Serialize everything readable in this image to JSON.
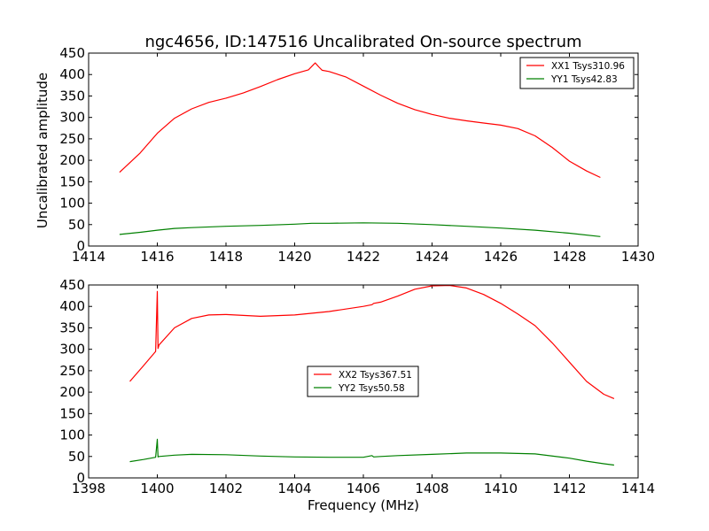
{
  "chart_data": [
    {
      "type": "line",
      "title": "ngc4656, ID:147516 Uncalibrated On-source spectrum",
      "xlabel": "",
      "ylabel": "Uncalibrated amplitude",
      "xlim": [
        1414,
        1430
      ],
      "ylim": [
        0,
        450
      ],
      "xticks": [
        "1414",
        "1416",
        "1418",
        "1420",
        "1422",
        "1424",
        "1426",
        "1428",
        "1430"
      ],
      "yticks": [
        "0",
        "50",
        "100",
        "150",
        "200",
        "250",
        "300",
        "350",
        "400",
        "450"
      ],
      "legend_position": "top-right",
      "series": [
        {
          "name": "XX1 Tsys310.96",
          "color": "#ff0000",
          "x": [
            1414.9,
            1415.5,
            1416.0,
            1416.5,
            1417.0,
            1417.5,
            1418.0,
            1418.5,
            1419.0,
            1419.5,
            1420.0,
            1420.4,
            1420.6,
            1420.7,
            1420.8,
            1421.0,
            1421.5,
            1422.0,
            1422.5,
            1423.0,
            1423.5,
            1424.0,
            1424.5,
            1425.0,
            1425.5,
            1426.0,
            1426.5,
            1427.0,
            1427.5,
            1428.0,
            1428.5,
            1428.9
          ],
          "y": [
            172,
            217,
            263,
            298,
            320,
            335,
            345,
            357,
            372,
            388,
            402,
            411,
            427,
            418,
            410,
            407,
            394,
            373,
            352,
            333,
            318,
            307,
            298,
            292,
            287,
            282,
            274,
            257,
            230,
            198,
            175,
            160
          ]
        },
        {
          "name": "YY1 Tsys42.83",
          "color": "#008000",
          "x": [
            1414.9,
            1415.5,
            1416.0,
            1416.5,
            1417.0,
            1418.0,
            1419.0,
            1420.0,
            1420.5,
            1421.0,
            1422.0,
            1423.0,
            1424.0,
            1425.0,
            1426.0,
            1427.0,
            1428.0,
            1428.9
          ],
          "y": [
            27,
            32,
            37,
            41,
            43,
            46,
            48,
            51,
            53,
            53,
            54,
            53,
            50,
            46,
            42,
            37,
            30,
            22
          ]
        }
      ]
    },
    {
      "type": "line",
      "title": "",
      "xlabel": "Frequency (MHz)",
      "ylabel": "",
      "xlim": [
        1398,
        1414
      ],
      "ylim": [
        0,
        450
      ],
      "xticks": [
        "1398",
        "1400",
        "1402",
        "1404",
        "1406",
        "1408",
        "1410",
        "1412",
        "1414"
      ],
      "yticks": [
        "0",
        "50",
        "100",
        "150",
        "200",
        "250",
        "300",
        "350",
        "400",
        "450"
      ],
      "legend_position": "center",
      "series": [
        {
          "name": "XX2 Tsys367.51",
          "color": "#ff0000",
          "x": [
            1399.2,
            1399.6,
            1399.95,
            1400.0,
            1400.02,
            1400.05,
            1400.5,
            1401.0,
            1401.5,
            1402.0,
            1403.0,
            1404.0,
            1405.0,
            1406.0,
            1406.25,
            1406.3,
            1406.5,
            1407.0,
            1407.5,
            1408.0,
            1408.5,
            1409.0,
            1409.5,
            1410.0,
            1410.5,
            1411.0,
            1411.5,
            1412.0,
            1412.5,
            1413.0,
            1413.3
          ],
          "y": [
            225,
            262,
            295,
            435,
            302,
            310,
            350,
            372,
            380,
            381,
            377,
            380,
            388,
            400,
            404,
            407,
            410,
            424,
            440,
            448,
            449,
            443,
            428,
            407,
            382,
            355,
            315,
            270,
            225,
            195,
            185
          ]
        },
        {
          "name": "YY2 Tsys50.58",
          "color": "#008000",
          "x": [
            1399.2,
            1399.6,
            1399.95,
            1400.0,
            1400.02,
            1400.05,
            1400.5,
            1401.0,
            1402.0,
            1403.0,
            1404.0,
            1405.0,
            1406.0,
            1406.25,
            1406.3,
            1406.5,
            1407.0,
            1408.0,
            1409.0,
            1410.0,
            1410.5,
            1411.0,
            1412.0,
            1412.5,
            1413.0,
            1413.3
          ],
          "y": [
            38,
            43,
            48,
            90,
            49,
            50,
            53,
            55,
            54,
            51,
            49,
            48,
            48,
            52,
            49,
            50,
            52,
            55,
            58,
            58,
            57,
            56,
            46,
            39,
            33,
            30
          ]
        }
      ]
    }
  ]
}
